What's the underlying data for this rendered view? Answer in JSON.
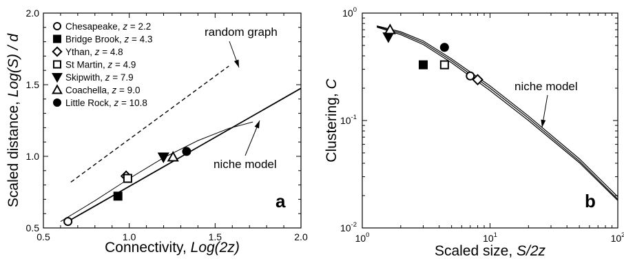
{
  "chart_data": [
    {
      "panel": "a",
      "type": "scatter",
      "xlabel": "Connectivity, Log(2z)",
      "ylabel": "Scaled distance, Log(S) / d",
      "xlim": [
        0.5,
        2.0
      ],
      "ylim": [
        0.5,
        2.0
      ],
      "xticks": [
        "0.5",
        "1.0",
        "1.5",
        "2.0"
      ],
      "yticks": [
        "0.5",
        "1.0",
        "1.5",
        "2.0"
      ],
      "legend_position": "top-left",
      "series": [
        {
          "name": "Chesapeake, z = 2.2",
          "marker": "circle-open",
          "points": [
            [
              0.643,
              0.545
            ]
          ]
        },
        {
          "name": "Bridge Brook, z = 4.3",
          "marker": "square-filled",
          "points": [
            [
              0.934,
              0.722
            ]
          ]
        },
        {
          "name": "Ythan, z = 4.8",
          "marker": "diamond-open",
          "points": [
            [
              0.982,
              0.862
            ]
          ]
        },
        {
          "name": "St Martin, z = 4.9",
          "marker": "square-open",
          "points": [
            [
              0.991,
              0.846
            ]
          ]
        },
        {
          "name": "Skipwith, z = 7.9",
          "marker": "triangle-down-filled",
          "points": [
            [
              1.199,
              0.995
            ]
          ]
        },
        {
          "name": "Coachella, z = 9.0",
          "marker": "triangle-up-open",
          "points": [
            [
              1.255,
              0.995
            ]
          ]
        },
        {
          "name": "Little Rock, z = 10.8",
          "marker": "circle-filled",
          "points": [
            [
              1.334,
              1.034
            ]
          ]
        }
      ],
      "lines": [
        {
          "label": "random graph",
          "style": "dashed",
          "points": [
            [
              0.66,
              0.82
            ],
            [
              1.58,
              1.63
            ]
          ]
        },
        {
          "label": "fit",
          "style": "solid-thick",
          "points": [
            [
              0.62,
              0.53
            ],
            [
              2.0,
              1.475
            ]
          ]
        },
        {
          "label": "niche model",
          "style": "solid-thin",
          "points": [
            [
              0.6,
              0.545
            ],
            [
              0.8,
              0.69
            ],
            [
              1.0,
              0.845
            ],
            [
              1.2,
              0.99
            ],
            [
              1.4,
              1.11
            ],
            [
              1.58,
              1.195
            ],
            [
              1.72,
              1.24
            ]
          ]
        }
      ],
      "annotations": [
        "random graph",
        "niche model",
        "a"
      ],
      "legend_z_label": "z"
    },
    {
      "panel": "b",
      "type": "scatter",
      "xlabel": "Scaled size, S/2z",
      "ylabel": "Clustering, C",
      "xscale": "log",
      "yscale": "log",
      "xlim": [
        1,
        100
      ],
      "ylim": [
        0.01,
        1
      ],
      "xticks": [
        {
          "base": "10",
          "exp": "0"
        },
        {
          "base": "10",
          "exp": "1"
        },
        {
          "base": "10",
          "exp": "2"
        }
      ],
      "yticks": [
        {
          "base": "10",
          "exp": "-2"
        },
        {
          "base": "10",
          "exp": "-1"
        },
        {
          "base": "10",
          "exp": "0"
        }
      ],
      "series": [
        {
          "name": "Chesapeake",
          "marker": "circle-open",
          "points": [
            [
              7.0,
              0.26
            ]
          ]
        },
        {
          "name": "Bridge Brook",
          "marker": "square-filled",
          "points": [
            [
              3.0,
              0.33
            ]
          ]
        },
        {
          "name": "Ythan",
          "marker": "diamond-open",
          "points": [
            [
              8.0,
              0.24
            ]
          ]
        },
        {
          "name": "St Martin",
          "marker": "square-open",
          "points": [
            [
              4.4,
              0.33
            ]
          ]
        },
        {
          "name": "Skipwith",
          "marker": "triangle-down-filled",
          "points": [
            [
              1.6,
              0.6
            ]
          ]
        },
        {
          "name": "Coachella",
          "marker": "triangle-up-open",
          "points": [
            [
              1.65,
              0.7
            ]
          ]
        },
        {
          "name": "Little Rock",
          "marker": "circle-filled",
          "points": [
            [
              4.4,
              0.48
            ]
          ]
        }
      ],
      "lines": [
        {
          "label": "niche model",
          "style": "solid",
          "points": [
            [
              1.3,
              0.75
            ],
            [
              2,
              0.65
            ],
            [
              3,
              0.53
            ],
            [
              5,
              0.36
            ],
            [
              10,
              0.2
            ],
            [
              20,
              0.105
            ],
            [
              50,
              0.042
            ],
            [
              100,
              0.0185
            ]
          ]
        },
        {
          "label": "",
          "style": "solid",
          "points": [
            [
              1.3,
              0.76
            ],
            [
              2,
              0.67
            ],
            [
              3,
              0.55
            ],
            [
              5,
              0.375
            ],
            [
              10,
              0.21
            ],
            [
              20,
              0.11
            ],
            [
              50,
              0.044
            ],
            [
              100,
              0.0195
            ]
          ]
        },
        {
          "label": "",
          "style": "solid",
          "points": [
            [
              1.3,
              0.74
            ],
            [
              2,
              0.63
            ],
            [
              3,
              0.51
            ],
            [
              5,
              0.345
            ],
            [
              10,
              0.19
            ],
            [
              20,
              0.1
            ],
            [
              50,
              0.0405
            ],
            [
              100,
              0.018
            ]
          ]
        }
      ],
      "annotations": [
        "niche model",
        "b"
      ]
    }
  ]
}
